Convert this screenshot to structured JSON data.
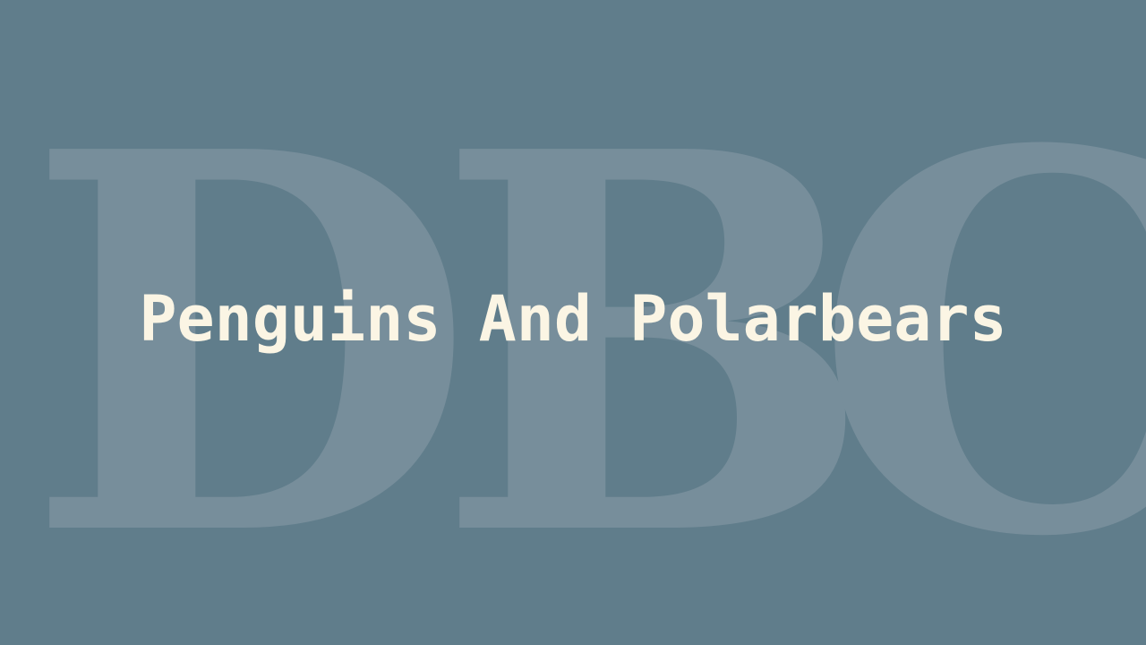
{
  "background": {
    "monogram": [
      "D",
      "B",
      "C"
    ],
    "color": "#607d8b",
    "monogram_color": "#778e9b"
  },
  "title": {
    "text": "Penguins And Polarbears",
    "color": "#fbf5e4"
  }
}
